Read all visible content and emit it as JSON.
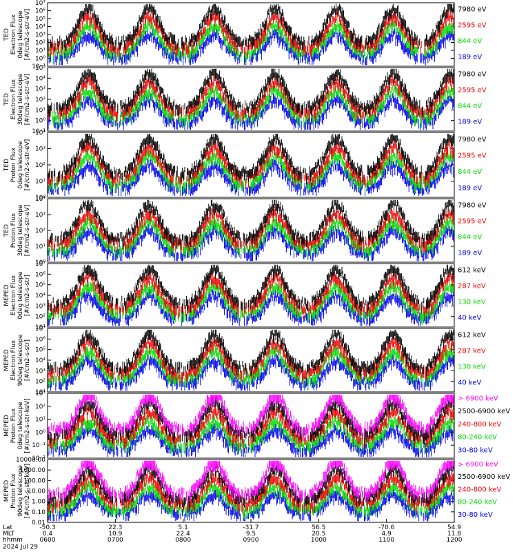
{
  "colors": {
    "black": "#000000",
    "red": "#ee0000",
    "green": "#00dd00",
    "blue": "#0000ee",
    "magenta": "#ff00ff"
  },
  "chart_data": [
    {
      "type": "line",
      "ylabel": [
        "TED",
        "Electron Flux",
        "0deg telescope",
        "[#/cm2-s-str-eV]"
      ],
      "ytick_labels": [
        "10⁻¹",
        "10⁰",
        "10¹",
        "10²",
        "10³",
        "10⁴",
        "10⁵",
        "10⁶",
        "10⁷"
      ],
      "log_scale": true,
      "ylim_exp": [
        -1,
        7
      ],
      "series": [
        {
          "name": "7980 eV",
          "color": "#000000"
        },
        {
          "name": "2595 eV",
          "color": "#ee0000"
        },
        {
          "name": "844 eV",
          "color": "#00dd00"
        },
        {
          "name": "189 eV",
          "color": "#0000ee"
        }
      ]
    },
    {
      "type": "line",
      "ylabel": [
        "TED",
        "Electron Flux",
        "30deg telescope",
        "[#/cm2-s-str-eV]"
      ],
      "ytick_labels": [
        "10⁻¹",
        "10⁰",
        "10¹",
        "10²",
        "10³",
        "10⁴",
        "10⁵"
      ],
      "log_scale": true,
      "ylim_exp": [
        -1,
        5
      ],
      "series": [
        {
          "name": "7980 eV",
          "color": "#000000"
        },
        {
          "name": "2595 eV",
          "color": "#ee0000"
        },
        {
          "name": "844 eV",
          "color": "#00dd00"
        },
        {
          "name": "189 eV",
          "color": "#0000ee"
        }
      ]
    },
    {
      "type": "line",
      "ylabel": [
        "TED",
        "Proton Flux",
        "0deg telescope",
        "[#/cm2-s-str-eV]"
      ],
      "ytick_labels": [
        "10⁰",
        "10¹",
        "10²",
        "10³",
        "10⁴"
      ],
      "log_scale": true,
      "ylim_exp": [
        0,
        4
      ],
      "series": [
        {
          "name": "7980 eV",
          "color": "#000000"
        },
        {
          "name": "2595 eV",
          "color": "#ee0000"
        },
        {
          "name": "844 eV",
          "color": "#00dd00"
        },
        {
          "name": "189 eV",
          "color": "#0000ee"
        }
      ]
    },
    {
      "type": "line",
      "ylabel": [
        "TED",
        "Proton Flux",
        "30deg telescope",
        "[#/cm2-s-str-eV]"
      ],
      "ytick_labels": [
        "10⁰",
        "10¹",
        "10²",
        "10³",
        "10⁴"
      ],
      "log_scale": true,
      "ylim_exp": [
        0,
        4
      ],
      "series": [
        {
          "name": "7980 eV",
          "color": "#000000"
        },
        {
          "name": "2595 eV",
          "color": "#ee0000"
        },
        {
          "name": "844 eV",
          "color": "#00dd00"
        },
        {
          "name": "189 eV",
          "color": "#0000ee"
        }
      ]
    },
    {
      "type": "line",
      "ylabel": [
        "MEPED",
        "Electron Flux",
        "0deg telescope",
        "[#/cm2-s-str]"
      ],
      "ytick_labels": [
        "10¹",
        "10²",
        "10³",
        "10⁴",
        "10⁵",
        "10⁶",
        "10⁷"
      ],
      "log_scale": true,
      "ylim_exp": [
        1,
        7
      ],
      "series": [
        {
          "name": "612 keV",
          "color": "#000000"
        },
        {
          "name": "287 keV",
          "color": "#ee0000"
        },
        {
          "name": "130 keV",
          "color": "#00dd00"
        },
        {
          "name": "40 keV",
          "color": "#0000ee"
        }
      ]
    },
    {
      "type": "line",
      "ylabel": [
        "MEPED",
        "Electron Flux",
        "90deg telescope",
        "[#/cm2-s-str]"
      ],
      "ytick_labels": [
        "10¹",
        "10²",
        "10³",
        "10⁴",
        "10⁵",
        "10⁶",
        "10⁷"
      ],
      "log_scale": true,
      "ylim_exp": [
        1,
        7
      ],
      "series": [
        {
          "name": "612 keV",
          "color": "#000000"
        },
        {
          "name": "287 keV",
          "color": "#ee0000"
        },
        {
          "name": "130 keV",
          "color": "#00dd00"
        },
        {
          "name": "40 keV",
          "color": "#0000ee"
        }
      ]
    },
    {
      "type": "line",
      "ylabel": [
        "MEPED",
        "Proton Flux",
        "0deg telescope",
        "[#/cm2-s-str-keV]"
      ],
      "ytick_labels": [
        "10⁻²",
        "10⁻¹",
        "10⁰",
        "10¹",
        "10²",
        "10³"
      ],
      "log_scale": true,
      "ylim_exp": [
        -2,
        3
      ],
      "series": [
        {
          "name": "> 6900 keV",
          "color": "#ff00ff"
        },
        {
          "name": "2500-6900 keV",
          "color": "#000000"
        },
        {
          "name": "240-800 keV",
          "color": "#ee0000"
        },
        {
          "name": "80-240 keV",
          "color": "#00dd00"
        },
        {
          "name": "30-80 keV",
          "color": "#0000ee"
        }
      ]
    },
    {
      "type": "line",
      "ylabel": [
        "MEPED",
        "Proton Flux",
        "90deg telescope",
        "[#/cm2-s-str-keV]"
      ],
      "ytick_labels": [
        "0.01",
        "0.10",
        "1.00",
        "10.00",
        "100.00",
        "1000.00",
        "10000.00"
      ],
      "log_scale": true,
      "ylim_exp": [
        -2,
        4
      ],
      "series": [
        {
          "name": "> 6900 keV",
          "color": "#ff00ff"
        },
        {
          "name": "2500-6900 keV",
          "color": "#000000"
        },
        {
          "name": "240-800 keV",
          "color": "#ee0000"
        },
        {
          "name": "80-240 keV",
          "color": "#00dd00"
        },
        {
          "name": "30-80 keV",
          "color": "#0000ee"
        }
      ]
    }
  ],
  "x_axis": {
    "row_names": [
      "Lat",
      "MLT",
      "hhmm"
    ],
    "ticks": [
      {
        "lat": "-50.3",
        "mlt": "0.4",
        "time": "0600"
      },
      {
        "lat": "22.3",
        "mlt": "10.9",
        "time": "0700"
      },
      {
        "lat": "5.1",
        "mlt": "22.4",
        "time": "0800"
      },
      {
        "lat": "-31.7",
        "mlt": "9.5",
        "time": "0900"
      },
      {
        "lat": "56.5",
        "mlt": "20.5",
        "time": "1000"
      },
      {
        "lat": "-70.6",
        "mlt": "4.9",
        "time": "1100"
      },
      {
        "lat": "54.9",
        "mlt": "11.8",
        "time": "1200"
      }
    ],
    "date": "2024 Jul 29"
  }
}
